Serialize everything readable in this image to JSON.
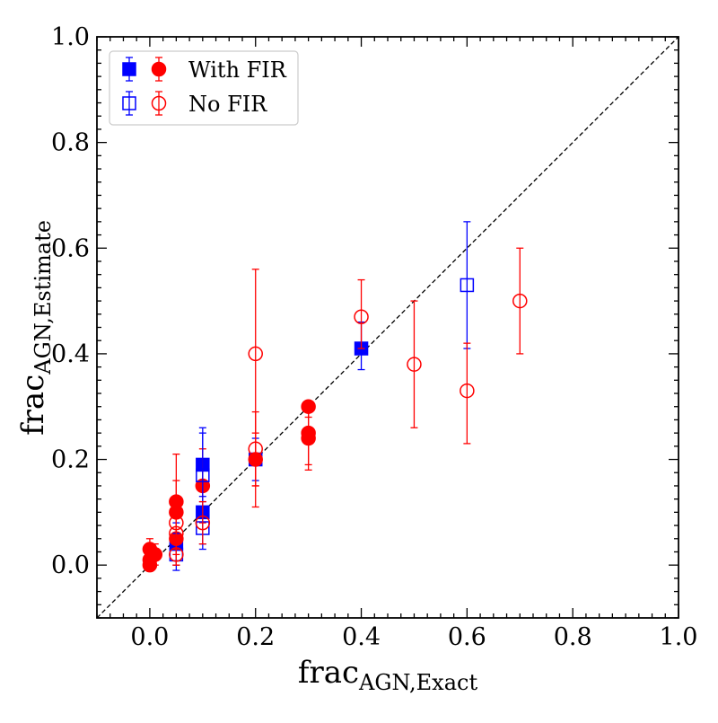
{
  "chart_data": {
    "type": "scatter",
    "xlabel": {
      "main": "frac",
      "sub": "AGN,Exact"
    },
    "ylabel": {
      "main": "frac",
      "sub": "AGN,Estimate"
    },
    "xlim": [
      -0.1,
      1.0
    ],
    "ylim": [
      -0.1,
      1.0
    ],
    "xticks": [
      0.0,
      0.2,
      0.4,
      0.6,
      0.8,
      1.0
    ],
    "xtick_labels": [
      "0.0",
      "0.2",
      "0.4",
      "0.6",
      "0.8",
      "1.0"
    ],
    "yticks": [
      0.0,
      0.2,
      0.4,
      0.6,
      0.8,
      1.0
    ],
    "ytick_labels": [
      "0.0",
      "0.2",
      "0.4",
      "0.6",
      "0.8",
      "1.0"
    ],
    "grid": false,
    "reference_line": {
      "type": "one-to-one",
      "style": "dashed",
      "color": "#000000"
    },
    "legend": {
      "placement": "top-left",
      "entries": [
        {
          "label": "With FIR",
          "markers": [
            "filled-square",
            "filled-circle"
          ]
        },
        {
          "label": "No FIR",
          "markers": [
            "open-square",
            "open-circle"
          ]
        }
      ]
    },
    "colors": {
      "blue": "#0000ff",
      "red": "#ff0000"
    },
    "series": [
      {
        "color": "#0000ff",
        "marker": "square",
        "fill": true,
        "points": [
          {
            "x": 0.05,
            "y": 0.04,
            "ylo": 0.0,
            "yhi": 0.08
          },
          {
            "x": 0.1,
            "y": 0.1,
            "ylo": 0.04,
            "yhi": 0.16
          },
          {
            "x": 0.1,
            "y": 0.19,
            "ylo": 0.13,
            "yhi": 0.25
          },
          {
            "x": 0.2,
            "y": 0.2,
            "ylo": 0.16,
            "yhi": 0.24
          },
          {
            "x": 0.4,
            "y": 0.41,
            "ylo": 0.37,
            "yhi": 0.46
          }
        ]
      },
      {
        "color": "#ff0000",
        "marker": "circle",
        "fill": true,
        "points": [
          {
            "x": 0.0,
            "y": 0.0,
            "ylo": -0.01,
            "yhi": 0.02
          },
          {
            "x": 0.0,
            "y": 0.01,
            "ylo": -0.01,
            "yhi": 0.03
          },
          {
            "x": 0.01,
            "y": 0.02,
            "ylo": 0.0,
            "yhi": 0.04
          },
          {
            "x": 0.0,
            "y": 0.03,
            "ylo": 0.01,
            "yhi": 0.05
          },
          {
            "x": 0.05,
            "y": 0.05,
            "ylo": 0.0,
            "yhi": 0.1
          },
          {
            "x": 0.05,
            "y": 0.1,
            "ylo": 0.04,
            "yhi": 0.16
          },
          {
            "x": 0.05,
            "y": 0.12,
            "ylo": 0.04,
            "yhi": 0.21
          },
          {
            "x": 0.1,
            "y": 0.15,
            "ylo": 0.08,
            "yhi": 0.22
          },
          {
            "x": 0.2,
            "y": 0.2,
            "ylo": 0.15,
            "yhi": 0.25
          },
          {
            "x": 0.3,
            "y": 0.24,
            "ylo": 0.18,
            "yhi": 0.3
          },
          {
            "x": 0.3,
            "y": 0.25,
            "ylo": 0.19,
            "yhi": 0.31
          },
          {
            "x": 0.3,
            "y": 0.3,
            "ylo": 0.28,
            "yhi": 0.31
          }
        ]
      },
      {
        "color": "#0000ff",
        "marker": "square",
        "fill": false,
        "points": [
          {
            "x": 0.05,
            "y": 0.02,
            "ylo": -0.01,
            "yhi": 0.06
          },
          {
            "x": 0.1,
            "y": 0.07,
            "ylo": 0.03,
            "yhi": 0.12
          },
          {
            "x": 0.1,
            "y": 0.17,
            "ylo": 0.09,
            "yhi": 0.26
          },
          {
            "x": 0.6,
            "y": 0.53,
            "ylo": 0.41,
            "yhi": 0.65
          }
        ]
      },
      {
        "color": "#ff0000",
        "marker": "circle",
        "fill": false,
        "points": [
          {
            "x": 0.05,
            "y": 0.02,
            "ylo": 0.0,
            "yhi": 0.05
          },
          {
            "x": 0.05,
            "y": 0.06,
            "ylo": 0.02,
            "yhi": 0.1
          },
          {
            "x": 0.05,
            "y": 0.08,
            "ylo": 0.03,
            "yhi": 0.13
          },
          {
            "x": 0.1,
            "y": 0.08,
            "ylo": 0.04,
            "yhi": 0.12
          },
          {
            "x": 0.2,
            "y": 0.22,
            "ylo": 0.15,
            "yhi": 0.29
          },
          {
            "x": 0.2,
            "y": 0.4,
            "ylo": 0.11,
            "yhi": 0.56
          },
          {
            "x": 0.4,
            "y": 0.47,
            "ylo": 0.41,
            "yhi": 0.54
          },
          {
            "x": 0.5,
            "y": 0.38,
            "ylo": 0.26,
            "yhi": 0.5
          },
          {
            "x": 0.6,
            "y": 0.33,
            "ylo": 0.23,
            "yhi": 0.42
          },
          {
            "x": 0.7,
            "y": 0.5,
            "ylo": 0.4,
            "yhi": 0.6
          }
        ]
      }
    ]
  }
}
